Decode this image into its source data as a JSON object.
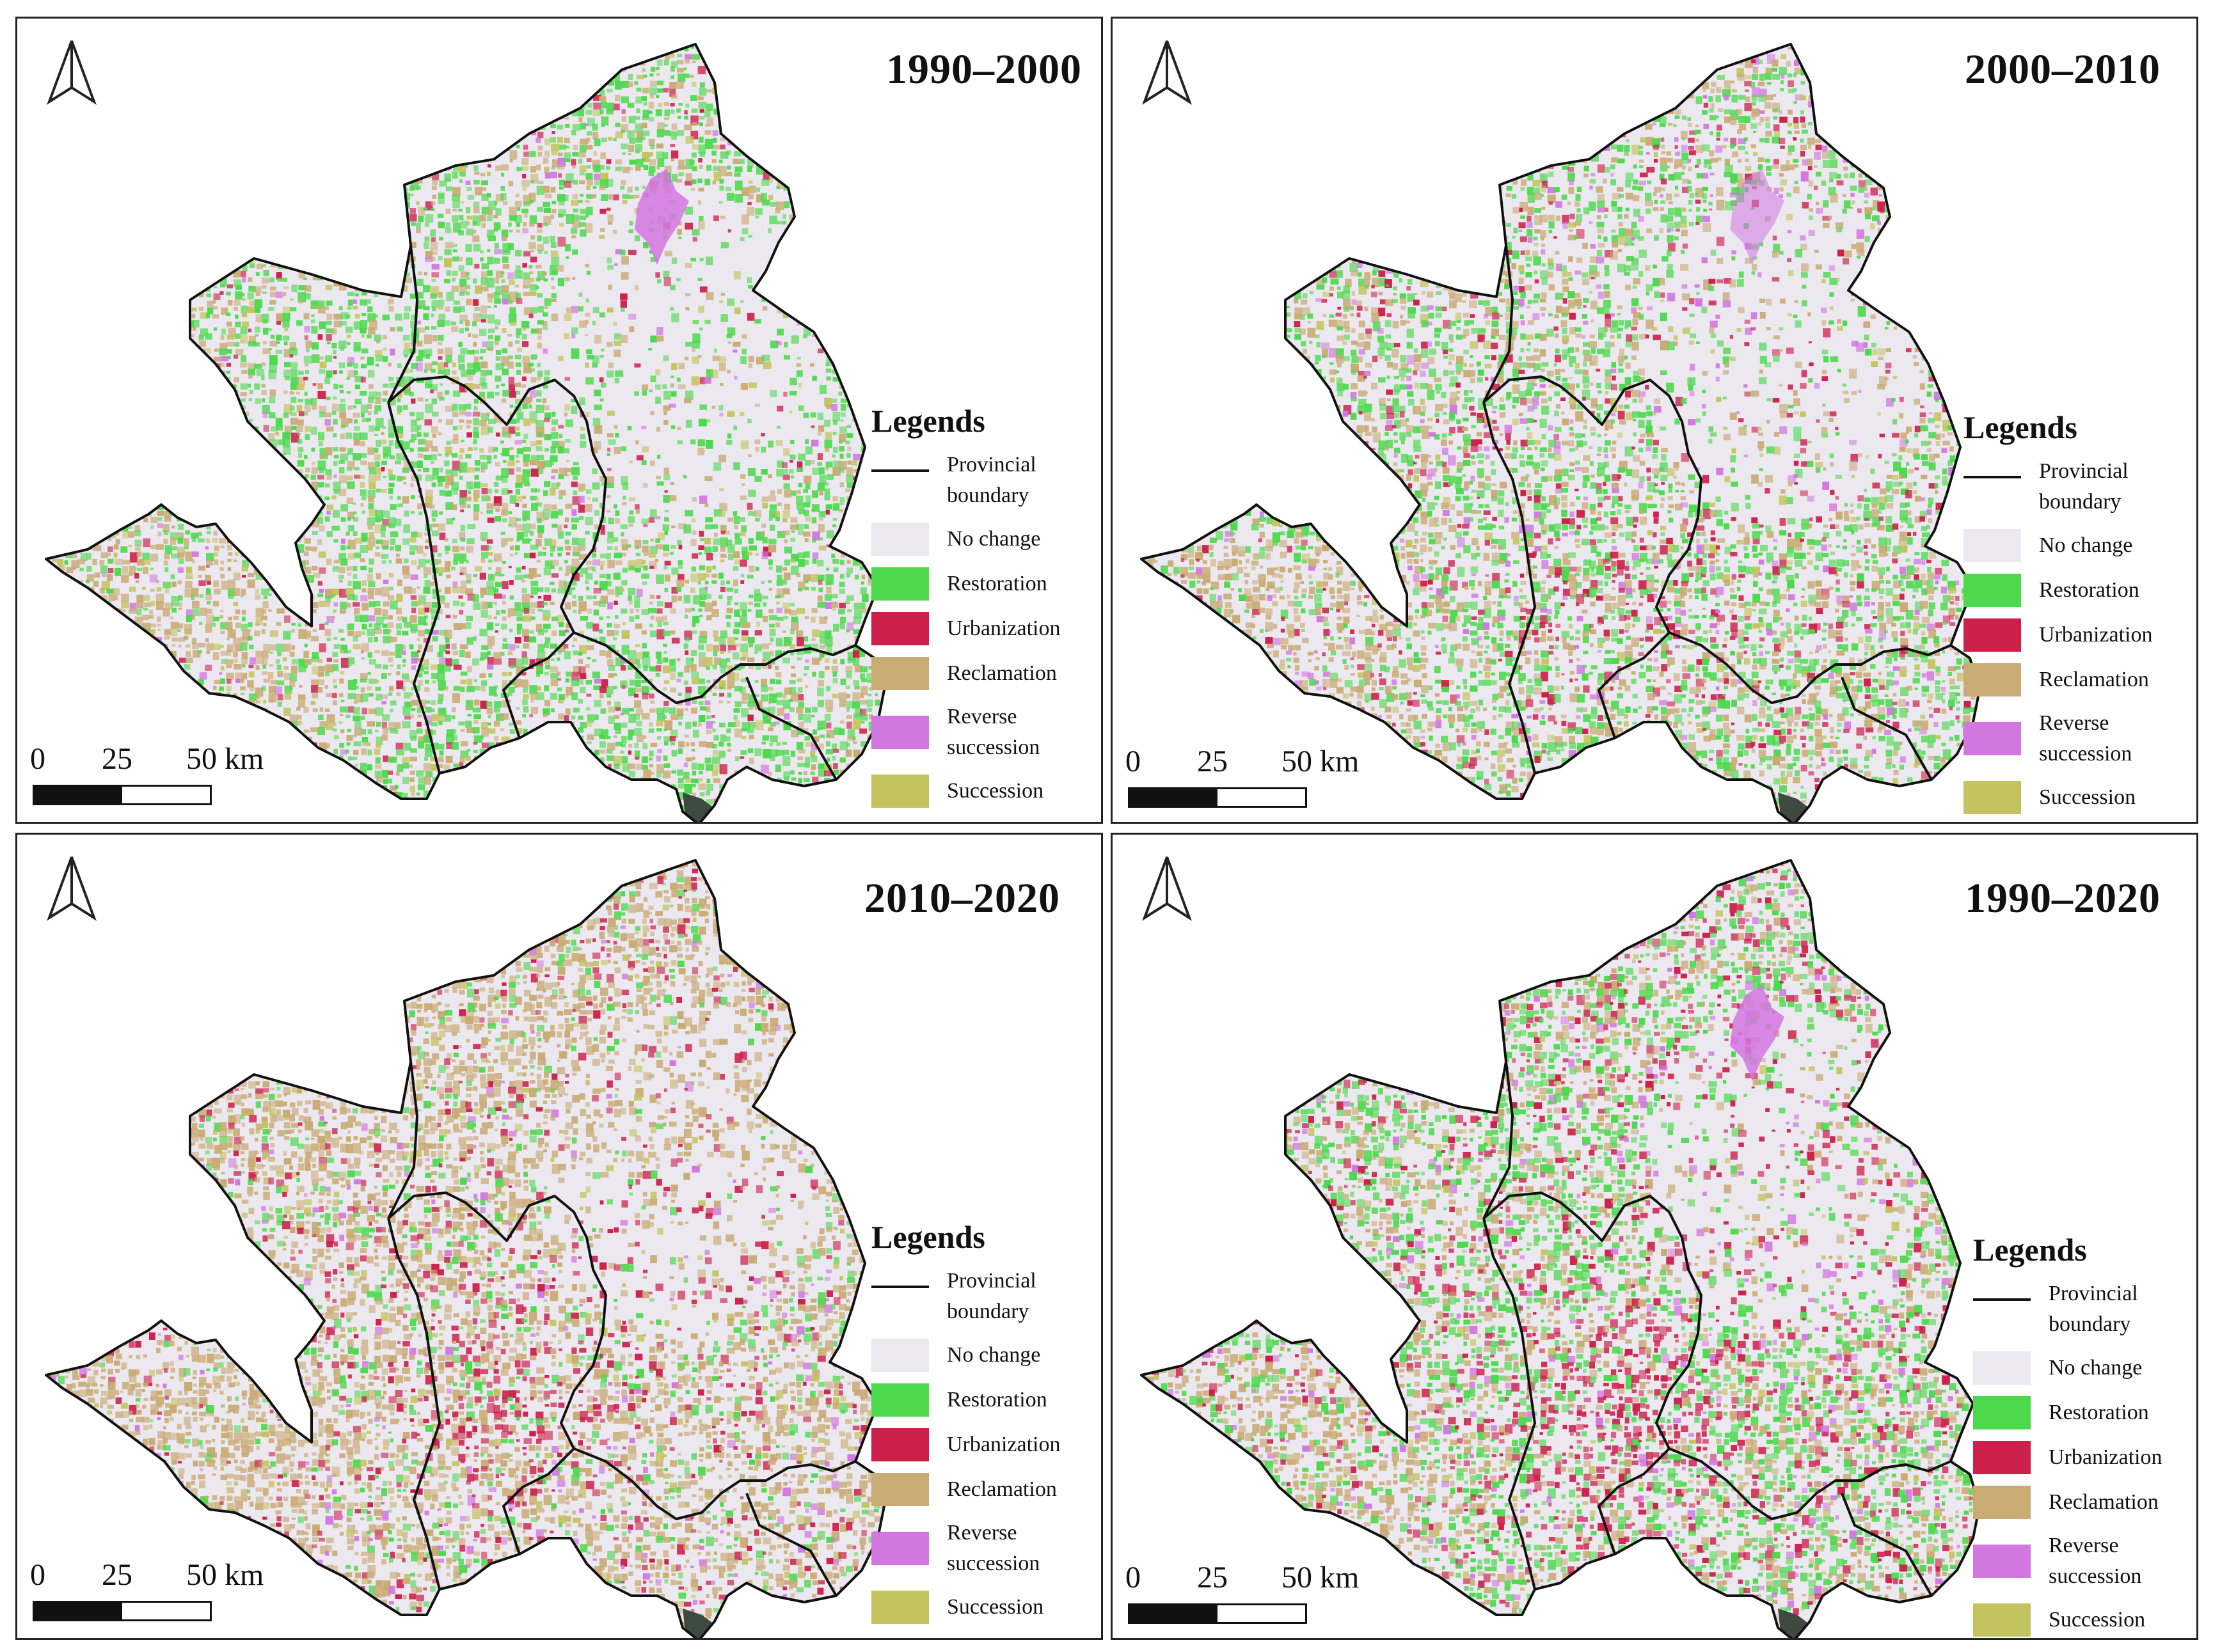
{
  "legend": {
    "title": "Legends",
    "items": [
      {
        "label": "Provincial boundary",
        "kind": "line",
        "color": "#111111"
      },
      {
        "label": "No change",
        "kind": "fill",
        "color": "#ece8f0"
      },
      {
        "label": "Restoration",
        "kind": "fill",
        "color": "#4cd94c"
      },
      {
        "label": "Urbanization",
        "kind": "fill",
        "color": "#cc1f4a"
      },
      {
        "label": "Reclamation",
        "kind": "fill",
        "color": "#c9ab74"
      },
      {
        "label": "Reverse succession",
        "kind": "fill",
        "color": "#d277e0"
      },
      {
        "label": "Succession",
        "kind": "fill",
        "color": "#c3c45e"
      }
    ]
  },
  "scale": {
    "labels": [
      "0",
      "25",
      "50 km"
    ]
  },
  "panels": [
    {
      "title": "1990–2000"
    },
    {
      "title": "2000–2010"
    },
    {
      "title": "2010–2020"
    },
    {
      "title": "1990–2020"
    }
  ]
}
